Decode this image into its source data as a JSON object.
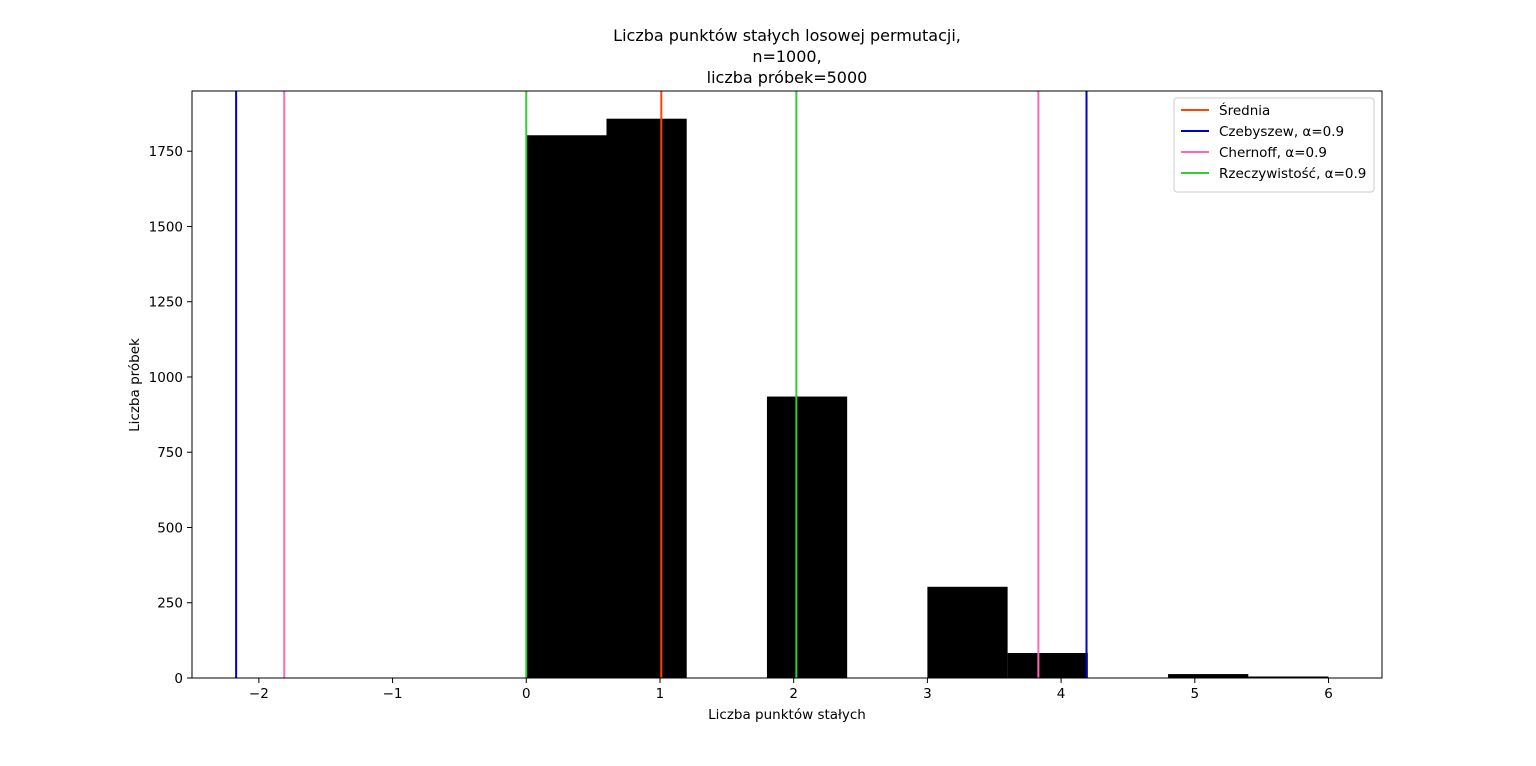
{
  "chart_data": {
    "type": "bar",
    "title_lines": [
      "Liczba punktów stałych losowej permutacji,",
      "n=1000,",
      "liczba próbek=5000"
    ],
    "xlabel": "Liczba punktów stałych",
    "ylabel": "Liczba próbek",
    "xlim": [
      -2.5,
      6.4
    ],
    "ylim": [
      0,
      1950
    ],
    "xticks": [
      -2,
      -1,
      0,
      1,
      2,
      3,
      4,
      5,
      6
    ],
    "xtick_labels": [
      "−2",
      "−1",
      "0",
      "1",
      "2",
      "3",
      "4",
      "5",
      "6"
    ],
    "yticks": [
      0,
      250,
      500,
      750,
      1000,
      1250,
      1500,
      1750
    ],
    "ytick_labels": [
      "0",
      "250",
      "500",
      "750",
      "1000",
      "1250",
      "1500",
      "1750"
    ],
    "bar_color": "#000000",
    "bins": [
      {
        "x0": 0.0,
        "x1": 0.6,
        "value": 1803
      },
      {
        "x0": 0.6,
        "x1": 1.2,
        "value": 1858
      },
      {
        "x0": 1.2,
        "x1": 1.8,
        "value": 0
      },
      {
        "x0": 1.8,
        "x1": 2.4,
        "value": 935
      },
      {
        "x0": 2.4,
        "x1": 3.0,
        "value": 0
      },
      {
        "x0": 3.0,
        "x1": 3.6,
        "value": 303
      },
      {
        "x0": 3.6,
        "x1": 4.2,
        "value": 83
      },
      {
        "x0": 4.2,
        "x1": 4.8,
        "value": 0
      },
      {
        "x0": 4.8,
        "x1": 5.4,
        "value": 13
      },
      {
        "x0": 5.4,
        "x1": 6.0,
        "value": 5
      }
    ],
    "vlines": [
      {
        "x": 1.01,
        "color": "#ff4500",
        "legend": 0
      },
      {
        "x": -2.17,
        "color": "#0000cd",
        "legend": 1
      },
      {
        "x": 4.19,
        "color": "#0000cd",
        "legend": 1
      },
      {
        "x": -1.81,
        "color": "#ff69b4",
        "legend": 2
      },
      {
        "x": 3.83,
        "color": "#ff69b4",
        "legend": 2
      },
      {
        "x": 0.0,
        "color": "#32cd32",
        "legend": 3
      },
      {
        "x": 2.02,
        "color": "#32cd32",
        "legend": 3
      }
    ],
    "legend": {
      "location": "top-right",
      "entries": [
        {
          "label": "Średnia",
          "color": "#ff4500"
        },
        {
          "label": "Czebyszew, α=0.9",
          "color": "#0000cd"
        },
        {
          "label": "Chernoff, α=0.9",
          "color": "#ff69b4"
        },
        {
          "label": "Rzeczywistość, α=0.9",
          "color": "#32cd32"
        }
      ]
    },
    "grid": false
  }
}
